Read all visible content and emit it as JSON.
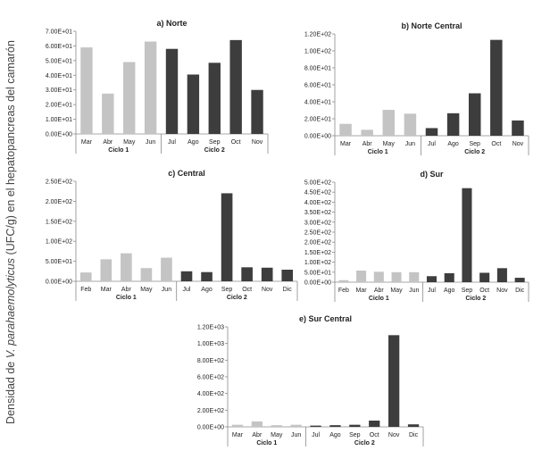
{
  "figure": {
    "ylabel_pre": "Densidad de ",
    "ylabel_italic": "V. parahaemolyticus",
    "ylabel_post": " (UFC/g) en el hepatopancreas del camarón"
  },
  "colors": {
    "cycle1": "#c4c4c4",
    "cycle2": "#3d3d3d",
    "axis": "#8a8a8a",
    "text": "#222222"
  },
  "chart_data": [
    {
      "type": "bar",
      "title": "a) Norte",
      "categories": [
        "Mar",
        "Abr",
        "May",
        "Jun",
        "Jul",
        "Ago",
        "Sep",
        "Oct",
        "Nov"
      ],
      "values": [
        59,
        27.5,
        49,
        63,
        58,
        40.5,
        48.5,
        64,
        30
      ],
      "cycle": [
        1,
        1,
        1,
        1,
        2,
        2,
        2,
        2,
        2
      ],
      "groups": [
        {
          "label": "Ciclo 1",
          "start": 0,
          "end": 3
        },
        {
          "label": "Ciclo 2",
          "start": 4,
          "end": 8
        }
      ],
      "ylim": [
        0,
        70
      ],
      "yticks": [
        0,
        10,
        20,
        30,
        40,
        50,
        60,
        70
      ],
      "ytick_labels": [
        "0.00E+00",
        "1.00E+01",
        "2.00E+01",
        "3.00E+01",
        "4.00E+01",
        "5.00E+01",
        "6.00E+01",
        "7.00E+01"
      ],
      "grid": false,
      "legend": "none"
    },
    {
      "type": "bar",
      "title": "b) Norte Central",
      "categories": [
        "Mar",
        "Abr",
        "May",
        "Jun",
        "Jul",
        "Ago",
        "Sep",
        "Oct",
        "Nov"
      ],
      "values": [
        14,
        7,
        30.5,
        26,
        9,
        26.5,
        50,
        113,
        18
      ],
      "cycle": [
        1,
        1,
        1,
        1,
        2,
        2,
        2,
        2,
        2
      ],
      "groups": [
        {
          "label": "Ciclo 1",
          "start": 0,
          "end": 3
        },
        {
          "label": "Ciclo 2",
          "start": 4,
          "end": 8
        }
      ],
      "ylim": [
        0,
        120
      ],
      "yticks": [
        0,
        20,
        40,
        60,
        80,
        100,
        120
      ],
      "ytick_labels": [
        "0.00E+00",
        "2.00E+01",
        "4.00E+01",
        "6.00E+01",
        "8.00E+01",
        "1.00E+02",
        "1.20E+02"
      ],
      "grid": false,
      "legend": "none"
    },
    {
      "type": "bar",
      "title": "c) Central",
      "categories": [
        "Feb",
        "Mar",
        "Abr",
        "May",
        "Jun",
        "Jul",
        "Ago",
        "Sep",
        "Oct",
        "Nov",
        "Dic"
      ],
      "values": [
        22,
        55,
        70,
        33,
        59,
        25,
        23,
        220,
        35,
        34,
        29
      ],
      "cycle": [
        1,
        1,
        1,
        1,
        1,
        2,
        2,
        2,
        2,
        2,
        2
      ],
      "groups": [
        {
          "label": "Ciclo 1",
          "start": 0,
          "end": 4
        },
        {
          "label": "Ciclo 2",
          "start": 5,
          "end": 10
        }
      ],
      "ylim": [
        0,
        250
      ],
      "yticks": [
        0,
        50,
        100,
        150,
        200,
        250
      ],
      "ytick_labels": [
        "0.00E+00",
        "5.00E+01",
        "1.00E+02",
        "1.50E+02",
        "2.00E+02",
        "2.50E+02"
      ],
      "grid": false,
      "legend": "none"
    },
    {
      "type": "bar",
      "title": "d) Sur",
      "categories": [
        "Feb",
        "Mar",
        "Abr",
        "May",
        "Jun",
        "Jul",
        "Ago",
        "Sep",
        "Oct",
        "Nov",
        "Dic"
      ],
      "values": [
        10,
        58,
        52,
        50,
        50,
        30,
        45,
        470,
        47,
        70,
        22
      ],
      "cycle": [
        1,
        1,
        1,
        1,
        1,
        2,
        2,
        2,
        2,
        2,
        2
      ],
      "groups": [
        {
          "label": "Ciclo 1",
          "start": 0,
          "end": 4
        },
        {
          "label": "Ciclo 2",
          "start": 5,
          "end": 10
        }
      ],
      "ylim": [
        0,
        500
      ],
      "yticks": [
        0,
        50,
        100,
        150,
        200,
        250,
        300,
        350,
        400,
        450,
        500
      ],
      "ytick_labels": [
        "0.00E+00",
        "5.00E+01",
        "1.00E+02",
        "1.50E+02",
        "2.00E+02",
        "2.50E+02",
        "3.00E+02",
        "3.50E+02",
        "4.00E+02",
        "4.50E+02",
        "5.00E+02"
      ],
      "grid": false,
      "legend": "none"
    },
    {
      "type": "bar",
      "title": "e) Sur Central",
      "categories": [
        "Mar",
        "Abr",
        "May",
        "Jun",
        "Jul",
        "Ago",
        "Sep",
        "Oct",
        "Nov",
        "Dic"
      ],
      "values": [
        25,
        65,
        20,
        25,
        15,
        20,
        25,
        75,
        1100,
        30
      ],
      "cycle": [
        1,
        1,
        1,
        1,
        2,
        2,
        2,
        2,
        2,
        2
      ],
      "groups": [
        {
          "label": "Ciclo 1",
          "start": 0,
          "end": 3
        },
        {
          "label": "Ciclo 2",
          "start": 4,
          "end": 9
        }
      ],
      "ylim": [
        0,
        1200
      ],
      "yticks": [
        0,
        200,
        400,
        600,
        800,
        1000,
        1200
      ],
      "ytick_labels": [
        "0.00E+00",
        "2.00E+02",
        "4.00E+02",
        "6.00E+02",
        "8.00E+02",
        "1.00E+03",
        "1.20E+03"
      ],
      "grid": false,
      "legend": "none"
    }
  ]
}
